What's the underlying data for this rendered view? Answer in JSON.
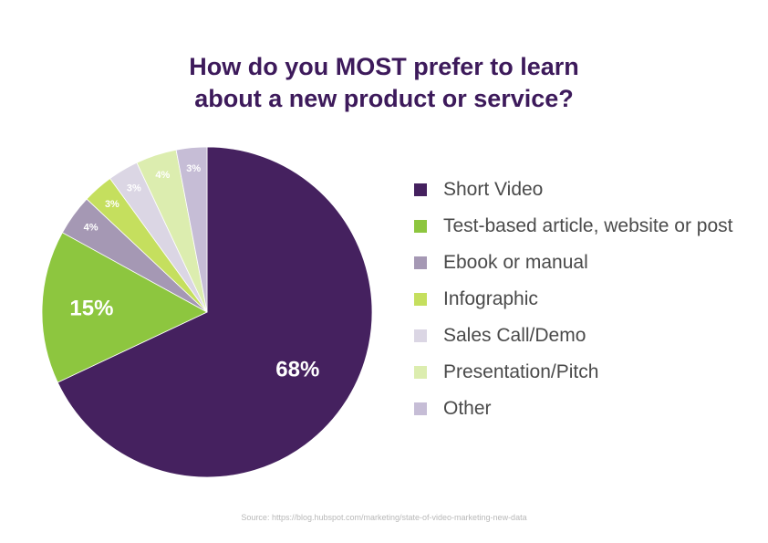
{
  "title_lines": [
    "How do you MOST prefer to learn",
    "about a new product or service?"
  ],
  "source": "Source: https://blog.hubspot.com/marketing/state-of-video-marketing-new-data",
  "chart_data": {
    "type": "pie",
    "title": "How do you MOST prefer to learn about a new product or service?",
    "legend_position": "right",
    "slices": [
      {
        "name": "Short Video",
        "value": 68,
        "label": "68%",
        "color": "#45215f"
      },
      {
        "name": "Test-based article, website or post",
        "value": 15,
        "label": "15%",
        "color": "#8dc63f"
      },
      {
        "name": "Ebook or manual",
        "value": 4,
        "label": "4%",
        "color": "#a598b4"
      },
      {
        "name": "Infographic",
        "value": 3,
        "label": "3%",
        "color": "#c5df5e"
      },
      {
        "name": "Sales Call/Demo",
        "value": 3,
        "label": "3%",
        "color": "#dbd6e4"
      },
      {
        "name": "Presentation/Pitch",
        "value": 4,
        "label": "4%",
        "color": "#dcedaf"
      },
      {
        "name": "Other",
        "value": 3,
        "label": "3%",
        "color": "#c6bdd6"
      }
    ]
  }
}
